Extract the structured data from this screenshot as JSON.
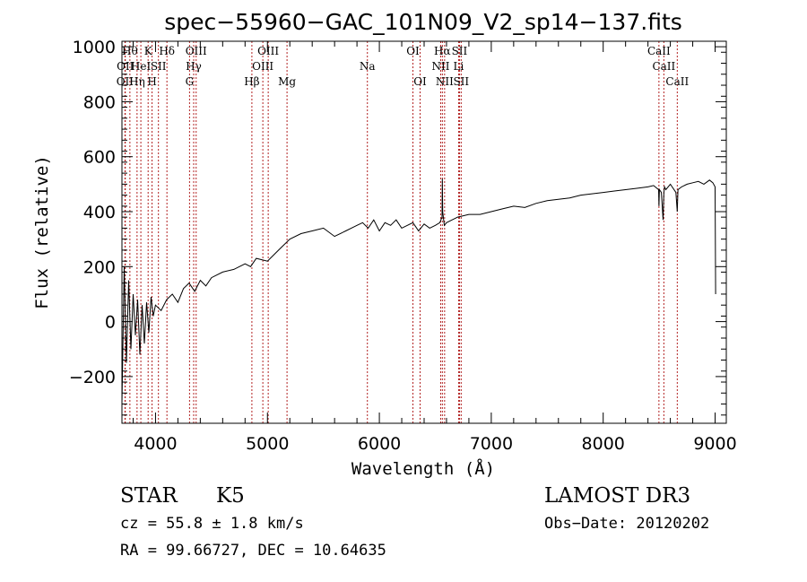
{
  "chart_data": {
    "type": "line",
    "title": "spec−55960−GAC_101N09_V2_sp14−137.fits",
    "xlabel": "Wavelength (Å)",
    "ylabel": "Flux (relative)",
    "xlim": [
      3700,
      9100
    ],
    "ylim": [
      -370,
      1020
    ],
    "x_ticks": [
      4000,
      5000,
      6000,
      7000,
      8000,
      9000
    ],
    "y_ticks": [
      -200,
      0,
      200,
      400,
      600,
      800,
      1000
    ],
    "y_tick_labels": [
      "−200",
      "0",
      "200",
      "400",
      "600",
      "800",
      "1000"
    ],
    "series": [
      {
        "name": "spectrum",
        "x": [
          3700,
          3720,
          3740,
          3760,
          3780,
          3800,
          3820,
          3840,
          3860,
          3880,
          3900,
          3920,
          3940,
          3960,
          3980,
          4000,
          4050,
          4100,
          4150,
          4200,
          4250,
          4300,
          4350,
          4400,
          4450,
          4500,
          4600,
          4700,
          4800,
          4850,
          4900,
          5000,
          5100,
          5200,
          5300,
          5400,
          5500,
          5600,
          5700,
          5800,
          5850,
          5900,
          5950,
          6000,
          6050,
          6100,
          6150,
          6200,
          6250,
          6300,
          6350,
          6400,
          6450,
          6500,
          6540,
          6560,
          6563,
          6566,
          6580,
          6600,
          6650,
          6700,
          6800,
          6900,
          7000,
          7100,
          7200,
          7300,
          7400,
          7500,
          7600,
          7700,
          7800,
          7900,
          8000,
          8100,
          8200,
          8300,
          8400,
          8450,
          8495,
          8498,
          8502,
          8520,
          8535,
          8542,
          8548,
          8560,
          8600,
          8650,
          8662,
          8668,
          8700,
          8750,
          8800,
          8850,
          8900,
          8950,
          8980,
          9000,
          9005
        ],
        "y": [
          -300,
          200,
          -150,
          150,
          -100,
          100,
          -50,
          80,
          -120,
          60,
          -80,
          70,
          -40,
          90,
          20,
          60,
          40,
          80,
          100,
          70,
          120,
          140,
          110,
          150,
          130,
          160,
          180,
          190,
          210,
          200,
          230,
          220,
          260,
          300,
          320,
          330,
          340,
          310,
          330,
          350,
          360,
          340,
          370,
          330,
          360,
          350,
          370,
          340,
          350,
          360,
          330,
          355,
          340,
          350,
          360,
          380,
          520,
          400,
          350,
          360,
          370,
          380,
          390,
          390,
          400,
          410,
          420,
          415,
          430,
          440,
          445,
          450,
          460,
          465,
          470,
          475,
          480,
          485,
          490,
          495,
          480,
          420,
          480,
          470,
          370,
          470,
          490,
          480,
          500,
          470,
          400,
          480,
          490,
          500,
          505,
          510,
          500,
          515,
          505,
          490,
          100
        ]
      }
    ],
    "line_markers": [
      {
        "wavelength": 3727,
        "label": "OII",
        "row": 2
      },
      {
        "wavelength": 3730,
        "label": "OII",
        "row": 1
      },
      {
        "wavelength": 3771,
        "label": "Hθ",
        "row": 0
      },
      {
        "wavelength": 3835,
        "label": "Hη",
        "row": 2
      },
      {
        "wavelength": 3869,
        "label": "HeI",
        "row": 1
      },
      {
        "wavelength": 3934,
        "label": "K",
        "row": 0
      },
      {
        "wavelength": 3969,
        "label": "H",
        "row": 2
      },
      {
        "wavelength": 4026,
        "label": "SII",
        "row": 1
      },
      {
        "wavelength": 4102,
        "label": "Hδ",
        "row": 0
      },
      {
        "wavelength": 4304,
        "label": "G",
        "row": 2
      },
      {
        "wavelength": 4341,
        "label": "Hγ",
        "row": 1
      },
      {
        "wavelength": 4363,
        "label": "OIII",
        "row": 0
      },
      {
        "wavelength": 4861,
        "label": "Hβ",
        "row": 2
      },
      {
        "wavelength": 4959,
        "label": "OIII",
        "row": 1
      },
      {
        "wavelength": 5007,
        "label": "OIII",
        "row": 0
      },
      {
        "wavelength": 5175,
        "label": "Mg",
        "row": 2
      },
      {
        "wavelength": 5893,
        "label": "Na",
        "row": 1
      },
      {
        "wavelength": 6300,
        "label": "OI",
        "row": 0
      },
      {
        "wavelength": 6364,
        "label": "OI",
        "row": 2
      },
      {
        "wavelength": 6548,
        "label": "NII",
        "row": 1
      },
      {
        "wavelength": 6563,
        "label": "Hα",
        "row": 0
      },
      {
        "wavelength": 6583,
        "label": "NII",
        "row": 2
      },
      {
        "wavelength": 6708,
        "label": "Li",
        "row": 1
      },
      {
        "wavelength": 6716,
        "label": "SII",
        "row": 0
      },
      {
        "wavelength": 6731,
        "label": "SII",
        "row": 2
      },
      {
        "wavelength": 8498,
        "label": "CaII",
        "row": 0
      },
      {
        "wavelength": 8542,
        "label": "CaII",
        "row": 1
      },
      {
        "wavelength": 8662,
        "label": "CaII",
        "row": 2
      }
    ],
    "info": {
      "object_class": "STAR",
      "subclass": "K5",
      "survey": "LAMOST DR3",
      "redshift": "cz = 55.8 ± 1.8 km/s",
      "obs_date": "Obs−Date: 20120202",
      "coords": "RA =  99.66727, DEC =  10.64635"
    }
  }
}
